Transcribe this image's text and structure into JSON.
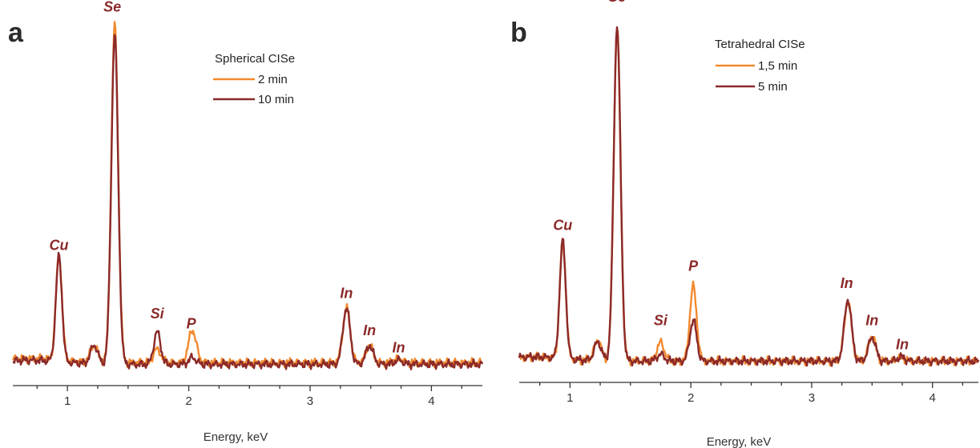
{
  "chart_data": [
    {
      "type": "line",
      "panel_letter": "a",
      "title": "",
      "xlabel": "Energy, keV",
      "ylabel": "",
      "xlim": [
        0.55,
        4.42
      ],
      "ylim": [
        0,
        1.0
      ],
      "xticks": [
        1,
        2,
        3,
        4
      ],
      "grid": false,
      "legend": {
        "placement": "top-center",
        "title": "Spherical CISe",
        "entries": [
          "2 min",
          "10 min"
        ]
      },
      "series": [
        {
          "name": "2 min",
          "color": "#f28a2e",
          "baseline": 0.03,
          "peaks": [
            [
              0.93,
              0.305,
              0.025
            ],
            [
              1.22,
              0.05,
              0.03
            ],
            [
              1.39,
              0.99,
              0.028
            ],
            [
              1.74,
              0.04,
              0.03
            ],
            [
              2.03,
              0.095,
              0.032
            ],
            [
              3.3,
              0.16,
              0.03
            ],
            [
              3.49,
              0.05,
              0.03
            ],
            [
              3.73,
              0.013,
              0.03
            ]
          ]
        },
        {
          "name": "10 min",
          "color": "#8b2a2a",
          "baseline": 0.025,
          "peaks": [
            [
              0.93,
              0.31,
              0.025
            ],
            [
              1.22,
              0.055,
              0.03
            ],
            [
              1.39,
              0.97,
              0.028
            ],
            [
              1.74,
              0.095,
              0.028
            ],
            [
              2.03,
              0.02,
              0.03
            ],
            [
              3.3,
              0.165,
              0.03
            ],
            [
              3.49,
              0.055,
              0.03
            ],
            [
              3.73,
              0.013,
              0.03
            ]
          ]
        }
      ],
      "annotations": [
        {
          "text": "Cu",
          "x": 0.93,
          "y": 0.36
        },
        {
          "text": "Se",
          "x": 1.37,
          "y": 1.06
        },
        {
          "text": "Si",
          "x": 1.74,
          "y": 0.16
        },
        {
          "text": "P",
          "x": 2.02,
          "y": 0.13
        },
        {
          "text": "In",
          "x": 3.3,
          "y": 0.22
        },
        {
          "text": "In",
          "x": 3.49,
          "y": 0.11
        },
        {
          "text": "In",
          "x": 3.73,
          "y": 0.06
        }
      ]
    },
    {
      "type": "line",
      "panel_letter": "b",
      "title": "",
      "xlabel": "Energy, keV",
      "ylabel": "",
      "xlim": [
        0.58,
        4.38
      ],
      "ylim": [
        0,
        1.0
      ],
      "xticks": [
        1,
        2,
        3,
        4
      ],
      "grid": false,
      "legend": {
        "placement": "top-center",
        "title": "Tetrahedral CISe",
        "entries": [
          "1,5 min",
          "5 min"
        ]
      },
      "series": [
        {
          "name": "1,5 min",
          "color": "#f28a2e",
          "baseline": 0.025,
          "peaks": [
            [
              0.94,
              0.34,
              0.025
            ],
            [
              1.23,
              0.06,
              0.03
            ],
            [
              1.39,
              0.98,
              0.028
            ],
            [
              1.75,
              0.055,
              0.03
            ],
            [
              2.02,
              0.22,
              0.028
            ],
            [
              3.3,
              0.175,
              0.03
            ],
            [
              3.5,
              0.075,
              0.03
            ],
            [
              3.74,
              0.012,
              0.03
            ]
          ]
        },
        {
          "name": "5 min",
          "color": "#8b2a2a",
          "baseline": 0.025,
          "peaks": [
            [
              0.94,
              0.345,
              0.025
            ],
            [
              1.23,
              0.055,
              0.03
            ],
            [
              1.39,
              0.985,
              0.028
            ],
            [
              1.75,
              0.02,
              0.03
            ],
            [
              2.02,
              0.12,
              0.028
            ],
            [
              3.3,
              0.18,
              0.03
            ],
            [
              3.5,
              0.07,
              0.03
            ],
            [
              3.74,
              0.012,
              0.03
            ]
          ]
        }
      ],
      "annotations": [
        {
          "text": "Cu",
          "x": 0.94,
          "y": 0.41
        },
        {
          "text": "Se",
          "x": 1.39,
          "y": 1.08
        },
        {
          "text": "Si",
          "x": 1.75,
          "y": 0.13
        },
        {
          "text": "P",
          "x": 2.02,
          "y": 0.29
        },
        {
          "text": "In",
          "x": 3.29,
          "y": 0.24
        },
        {
          "text": "In",
          "x": 3.5,
          "y": 0.13
        },
        {
          "text": "In",
          "x": 3.75,
          "y": 0.06
        }
      ]
    }
  ]
}
